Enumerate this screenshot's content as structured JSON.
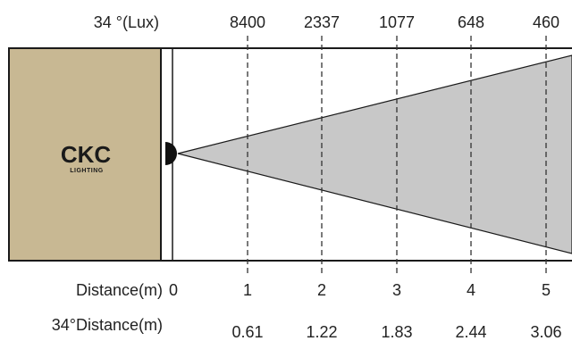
{
  "beam_angle_lux_label": "34 °(Lux)",
  "distance_label": "Distance(m)",
  "beam_distance_label": "34°Distance(m)",
  "origin_label": "0",
  "brand": {
    "logo_text": "CKC",
    "logo_sub": "LIGHTING"
  },
  "colors": {
    "housing": "#c8b893",
    "beam": "#c8c8c8",
    "lines": "#1a1a1a"
  },
  "markers": [
    {
      "distance": "1",
      "lux": "8400",
      "beam_distance": "0.61"
    },
    {
      "distance": "2",
      "lux": "2337",
      "beam_distance": "1.22"
    },
    {
      "distance": "3",
      "lux": "1077",
      "beam_distance": "1.83"
    },
    {
      "distance": "4",
      "lux": "648",
      "beam_distance": "2.44"
    },
    {
      "distance": "5",
      "lux": "460",
      "beam_distance": "3.06"
    }
  ]
}
